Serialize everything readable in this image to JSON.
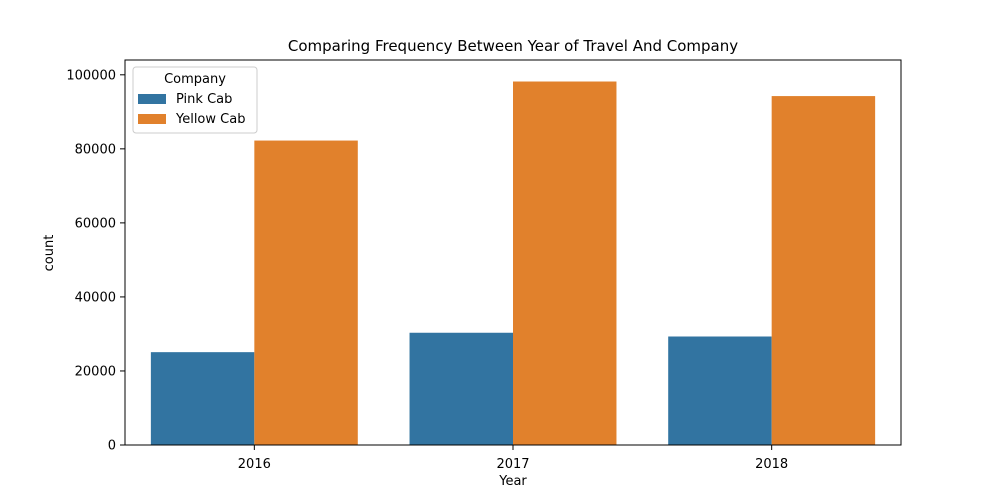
{
  "chart_data": {
    "type": "bar",
    "title": "Comparing Frequency Between Year of Travel And Company",
    "xlabel": "Year",
    "ylabel": "count",
    "categories": [
      "2016",
      "2017",
      "2018"
    ],
    "series": [
      {
        "name": "Pink Cab",
        "color": "#3274a1",
        "values": [
          25080,
          30321,
          29310
        ]
      },
      {
        "name": "Yellow Cab",
        "color": "#e1812c",
        "values": [
          82239,
          98189,
          94253
        ]
      }
    ],
    "ylim": [
      0,
      104000
    ],
    "yticks": [
      0,
      20000,
      40000,
      60000,
      80000,
      100000
    ],
    "legend": {
      "title": "Company",
      "placement": "top-left"
    },
    "grid": false
  }
}
